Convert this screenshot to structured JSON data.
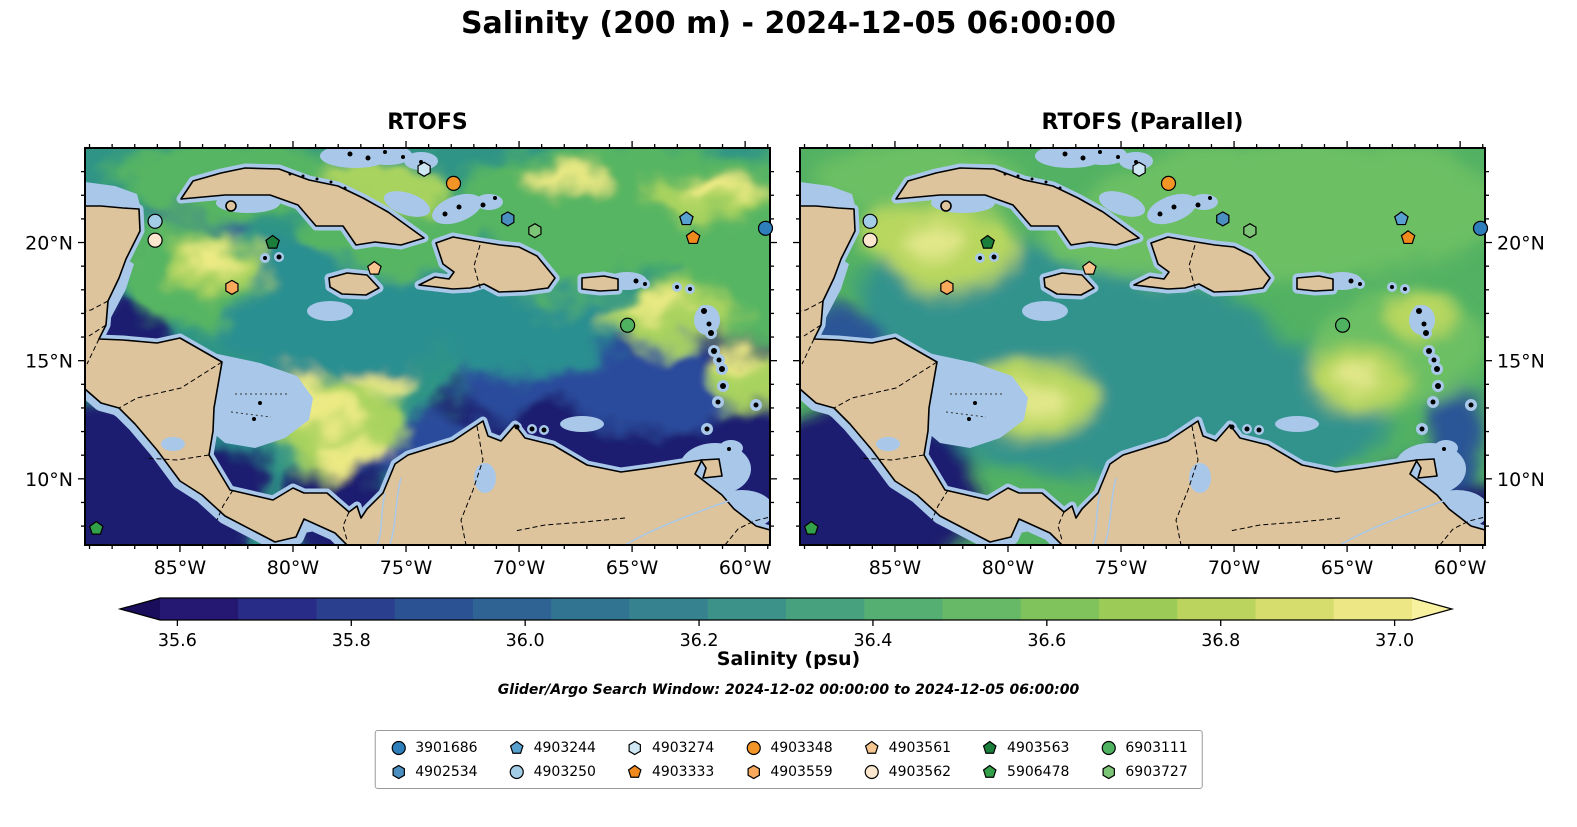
{
  "title": "Salinity (200 m) - 2024-12-05 06:00:00",
  "annotations": {
    "search_window": "Glider/Argo Search Window: 2024-12-02 00:00:00 to 2024-12-05 06:00:00"
  },
  "chart_data": {
    "type": "heatmap",
    "title": "Salinity (200 m) - 2024-12-05 06:00:00",
    "panel_titles": [
      "RTOFS",
      "RTOFS (Parallel)"
    ],
    "variable": "Salinity (psu)",
    "extent": {
      "lon_west_min": 89.2,
      "lon_west_max": 58.9,
      "lat_min": 7.2,
      "lat_max": 24.0
    },
    "axes": {
      "x_tick_lons_w": [
        85,
        80,
        75,
        70,
        65,
        60
      ],
      "x_tick_labels": [
        "85°W",
        "80°W",
        "75°W",
        "70°W",
        "65°W",
        "60°W"
      ],
      "y_tick_lats": [
        10,
        15,
        20
      ],
      "y_tick_labels": [
        "10°N",
        "15°N",
        "20°N"
      ]
    },
    "colorbar": {
      "label": "Salinity (psu)",
      "tick_values": [
        35.6,
        35.8,
        36.0,
        36.2,
        36.4,
        36.6,
        36.8,
        37.0
      ],
      "tick_labels": [
        "35.6",
        "35.8",
        "36.0",
        "36.2",
        "36.4",
        "36.6",
        "36.8",
        "37.0"
      ],
      "level_min": 35.58,
      "level_max": 37.02,
      "segment_colors": [
        "#251873",
        "#292c86",
        "#2a3f8e",
        "#2b5292",
        "#2e6393",
        "#317492",
        "#36838f",
        "#3c9289",
        "#47a17e",
        "#55ae72",
        "#68b967",
        "#80c25c",
        "#9ccb57",
        "#bad45d",
        "#d7dd6c",
        "#eee786"
      ],
      "under_color": "#190d5c",
      "over_color": "#f8f1a0"
    },
    "markers": [
      {
        "id": "3901686",
        "shape": "circle",
        "color": "#2e7ebc",
        "lon_w": 59.1,
        "lat": 20.6
      },
      {
        "id": "4902534",
        "shape": "hexagon",
        "color": "#4a8fc0",
        "lon_w": 70.5,
        "lat": 21.0
      },
      {
        "id": "4903244",
        "shape": "pentagon",
        "color": "#58a0d0",
        "lon_w": 62.6,
        "lat": 21.0
      },
      {
        "id": "4903250",
        "shape": "circle",
        "color": "#a3cce6",
        "lon_w": 86.1,
        "lat": 20.9
      },
      {
        "id": "4903274",
        "shape": "hexagon",
        "color": "#cfe6f3",
        "lon_w": 74.2,
        "lat": 23.1
      },
      {
        "id": "4903333",
        "shape": "pentagon",
        "color": "#f08a1d",
        "lon_w": 62.3,
        "lat": 20.2
      },
      {
        "id": "4903348",
        "shape": "circle",
        "color": "#f39426",
        "lon_w": 72.9,
        "lat": 22.5
      },
      {
        "id": "4903559",
        "shape": "hexagon",
        "color": "#f8a95c",
        "lon_w": 82.7,
        "lat": 18.1
      },
      {
        "id": "4903561",
        "shape": "pentagon",
        "color": "#f7c690",
        "lon_w": 76.4,
        "lat": 18.9
      },
      {
        "id": "4903562",
        "shape": "circle",
        "color": "#fae7cd",
        "lon_w": 86.1,
        "lat": 20.1
      },
      {
        "id": "4903563",
        "shape": "pentagon",
        "color": "#1b7f3b",
        "lon_w": 80.9,
        "lat": 20.0
      },
      {
        "id": "5906478",
        "shape": "pentagon",
        "color": "#33a04a",
        "lon_w": 88.7,
        "lat": 7.9
      },
      {
        "id": "6903111",
        "shape": "circle",
        "color": "#4fb261",
        "lon_w": 65.2,
        "lat": 16.5
      },
      {
        "id": "6903727",
        "shape": "hexagon",
        "color": "#7cc576",
        "lon_w": 69.3,
        "lat": 20.5
      }
    ]
  },
  "legend": {
    "rows": 2,
    "columns": 7,
    "items": [
      {
        "id": "3901686",
        "shape": "circle",
        "color": "#2e7ebc"
      },
      {
        "id": "4902534",
        "shape": "hexagon",
        "color": "#4a8fc0"
      },
      {
        "id": "4903244",
        "shape": "pentagon",
        "color": "#58a0d0"
      },
      {
        "id": "4903250",
        "shape": "circle",
        "color": "#a3cce6"
      },
      {
        "id": "4903274",
        "shape": "hexagon",
        "color": "#cfe6f3"
      },
      {
        "id": "4903333",
        "shape": "pentagon",
        "color": "#f08a1d"
      },
      {
        "id": "4903348",
        "shape": "circle",
        "color": "#f39426"
      },
      {
        "id": "4903559",
        "shape": "hexagon",
        "color": "#f8a95c"
      },
      {
        "id": "4903561",
        "shape": "pentagon",
        "color": "#f7c690"
      },
      {
        "id": "4903562",
        "shape": "circle",
        "color": "#fae7cd"
      },
      {
        "id": "4903563",
        "shape": "pentagon",
        "color": "#1b7f3b"
      },
      {
        "id": "5906478",
        "shape": "pentagon",
        "color": "#33a04a"
      },
      {
        "id": "6903111",
        "shape": "circle",
        "color": "#4fb261"
      },
      {
        "id": "6903727",
        "shape": "hexagon",
        "color": "#7cc576"
      }
    ]
  }
}
